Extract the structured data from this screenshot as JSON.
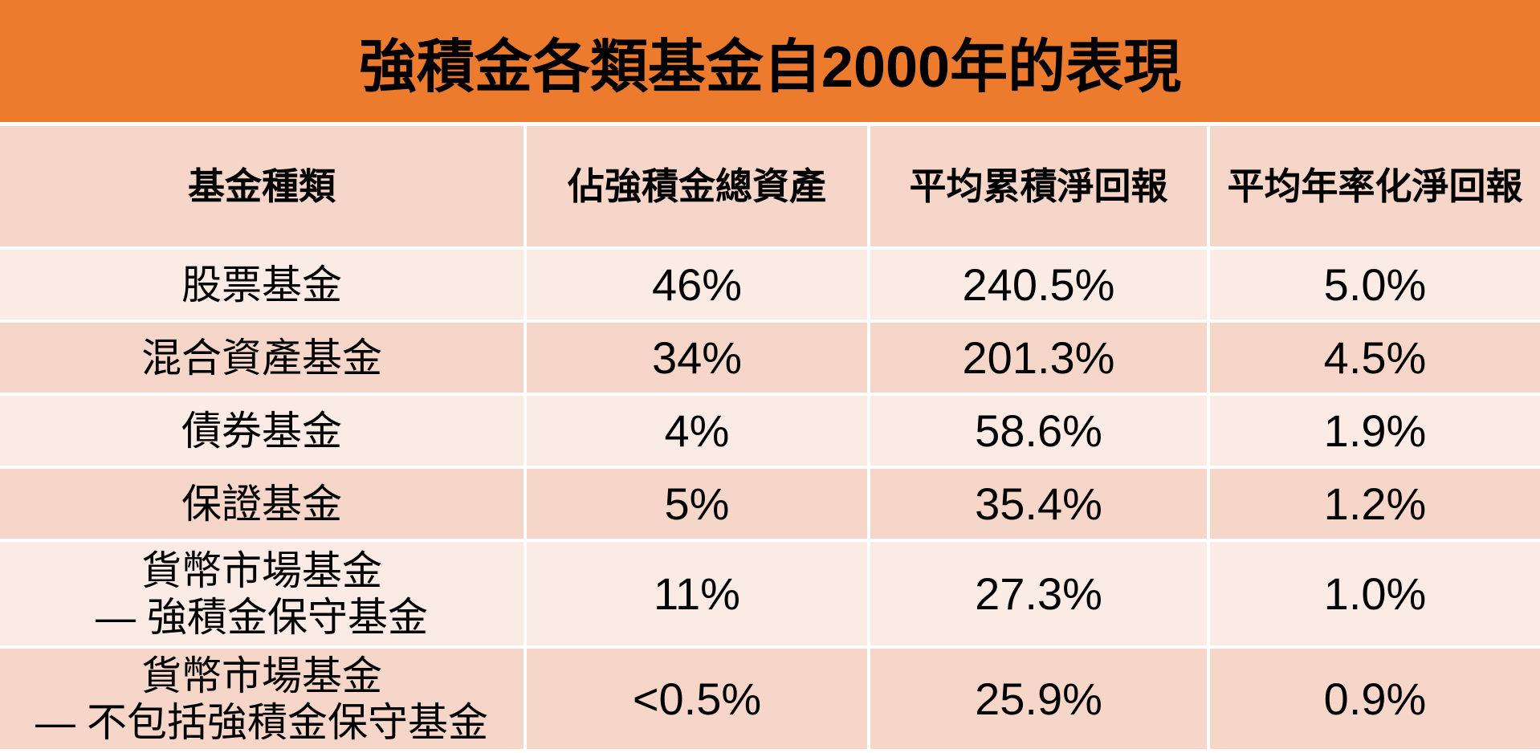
{
  "title": "強積金各類基金自2000年的表現",
  "table": {
    "headers": {
      "fund_type": "基金種類",
      "share_of_assets": "佔強積金總資產",
      "avg_cumulative_net_return": "平均累積淨回報",
      "avg_annualized_net_return": "平均年率化淨回報"
    },
    "rows": [
      {
        "fund_type": "股票基金",
        "share": "46%",
        "cumulative": "240.5%",
        "annualized": "5.0%"
      },
      {
        "fund_type": "混合資產基金",
        "share": "34%",
        "cumulative": "201.3%",
        "annualized": "4.5%"
      },
      {
        "fund_type": "債券基金",
        "share": "4%",
        "cumulative": "58.6%",
        "annualized": "1.9%"
      },
      {
        "fund_type": "保證基金",
        "share": "5%",
        "cumulative": "35.4%",
        "annualized": "1.2%"
      },
      {
        "fund_type": "貨幣市場基金",
        "fund_type_line2": "— 強積金保守基金",
        "share": "11%",
        "cumulative": "27.3%",
        "annualized": "1.0%"
      },
      {
        "fund_type": "貨幣市場基金",
        "fund_type_line2": "— 不包括強積金保守基金",
        "share": "<0.5%",
        "cumulative": "25.9%",
        "annualized": "0.9%"
      }
    ]
  },
  "colors": {
    "banner_orange": "#EC7B2E",
    "header_pink": "#F6D6C8",
    "band_dark_pink": "#F6D6C8",
    "band_light_pink": "#FBEBE5",
    "divider_white": "#FFFFFF",
    "text": "#000000"
  },
  "chart_data": {
    "type": "table",
    "title": "強積金各類基金自2000年的表現",
    "columns": [
      "基金種類",
      "佔強積金總資產",
      "平均累積淨回報",
      "平均年率化淨回報"
    ],
    "rows": [
      [
        "股票基金",
        "46%",
        "240.5%",
        "5.0%"
      ],
      [
        "混合資產基金",
        "34%",
        "201.3%",
        "4.5%"
      ],
      [
        "債券基金",
        "4%",
        "58.6%",
        "1.9%"
      ],
      [
        "保證基金",
        "5%",
        "35.4%",
        "1.2%"
      ],
      [
        "貨幣市場基金 — 強積金保守基金",
        "11%",
        "27.3%",
        "1.0%"
      ],
      [
        "貨幣市場基金 — 不包括強積金保守基金",
        "<0.5%",
        "25.9%",
        "0.9%"
      ]
    ],
    "series": [
      {
        "name": "佔強積金總資產 (%)",
        "values": [
          46,
          34,
          4,
          5,
          11,
          0.5
        ],
        "qualifiers": [
          "",
          "",
          "",
          "",
          "",
          "<"
        ]
      },
      {
        "name": "平均累積淨回報 (%)",
        "values": [
          240.5,
          201.3,
          58.6,
          35.4,
          27.3,
          25.9
        ]
      },
      {
        "name": "平均年率化淨回報 (%)",
        "values": [
          5.0,
          4.5,
          1.9,
          1.2,
          1.0,
          0.9
        ]
      }
    ],
    "layout": {
      "banding": "alternating pink rows",
      "grid": "white cell dividers",
      "legend": "none"
    }
  }
}
